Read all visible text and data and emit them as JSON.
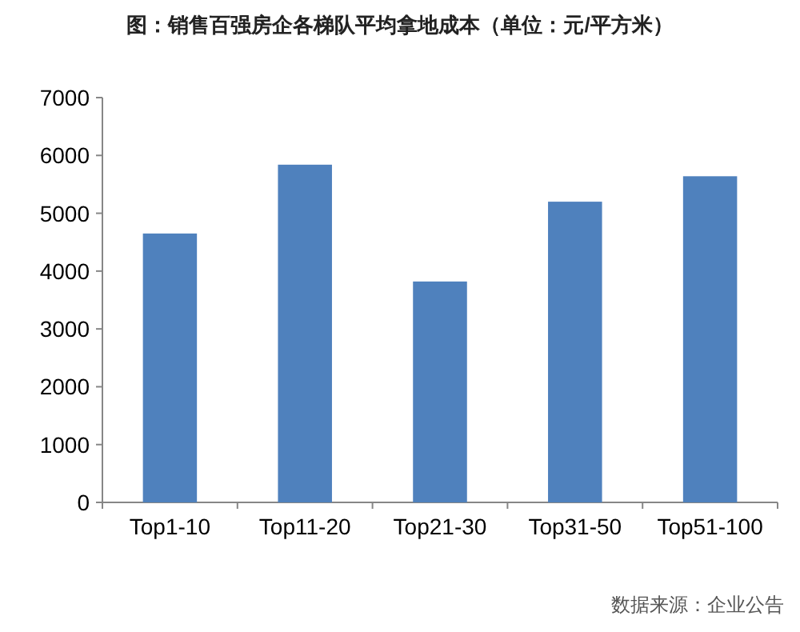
{
  "chart_data": {
    "type": "bar",
    "title": "图：销售百强房企各梯队平均拿地成本（单位：元/平方米）",
    "categories": [
      "Top1-10",
      "Top11-20",
      "Top21-30",
      "Top31-50",
      "Top51-100"
    ],
    "values": [
      4650,
      5840,
      3820,
      5200,
      5640
    ],
    "color": "#4f81bd",
    "ylim": [
      0,
      7000
    ],
    "yticks": [
      0,
      1000,
      2000,
      3000,
      4000,
      5000,
      6000,
      7000
    ],
    "grid": false,
    "annotations": [
      "数据来源：企业公告"
    ]
  }
}
